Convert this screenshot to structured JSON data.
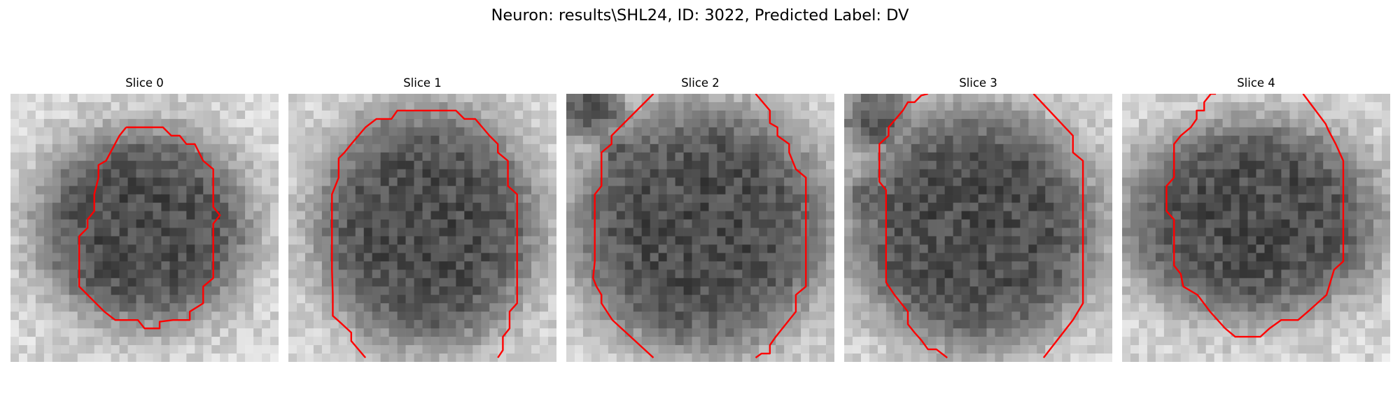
{
  "figure": {
    "title": "Neuron: results\\SHL24, ID: 3022, Predicted Label: DV"
  },
  "contour_color": "#ff0000",
  "panels": [
    {
      "title": "Slice 0"
    },
    {
      "title": "Slice 1"
    },
    {
      "title": "Slice 2"
    },
    {
      "title": "Slice 3"
    },
    {
      "title": "Slice 4"
    }
  ]
}
